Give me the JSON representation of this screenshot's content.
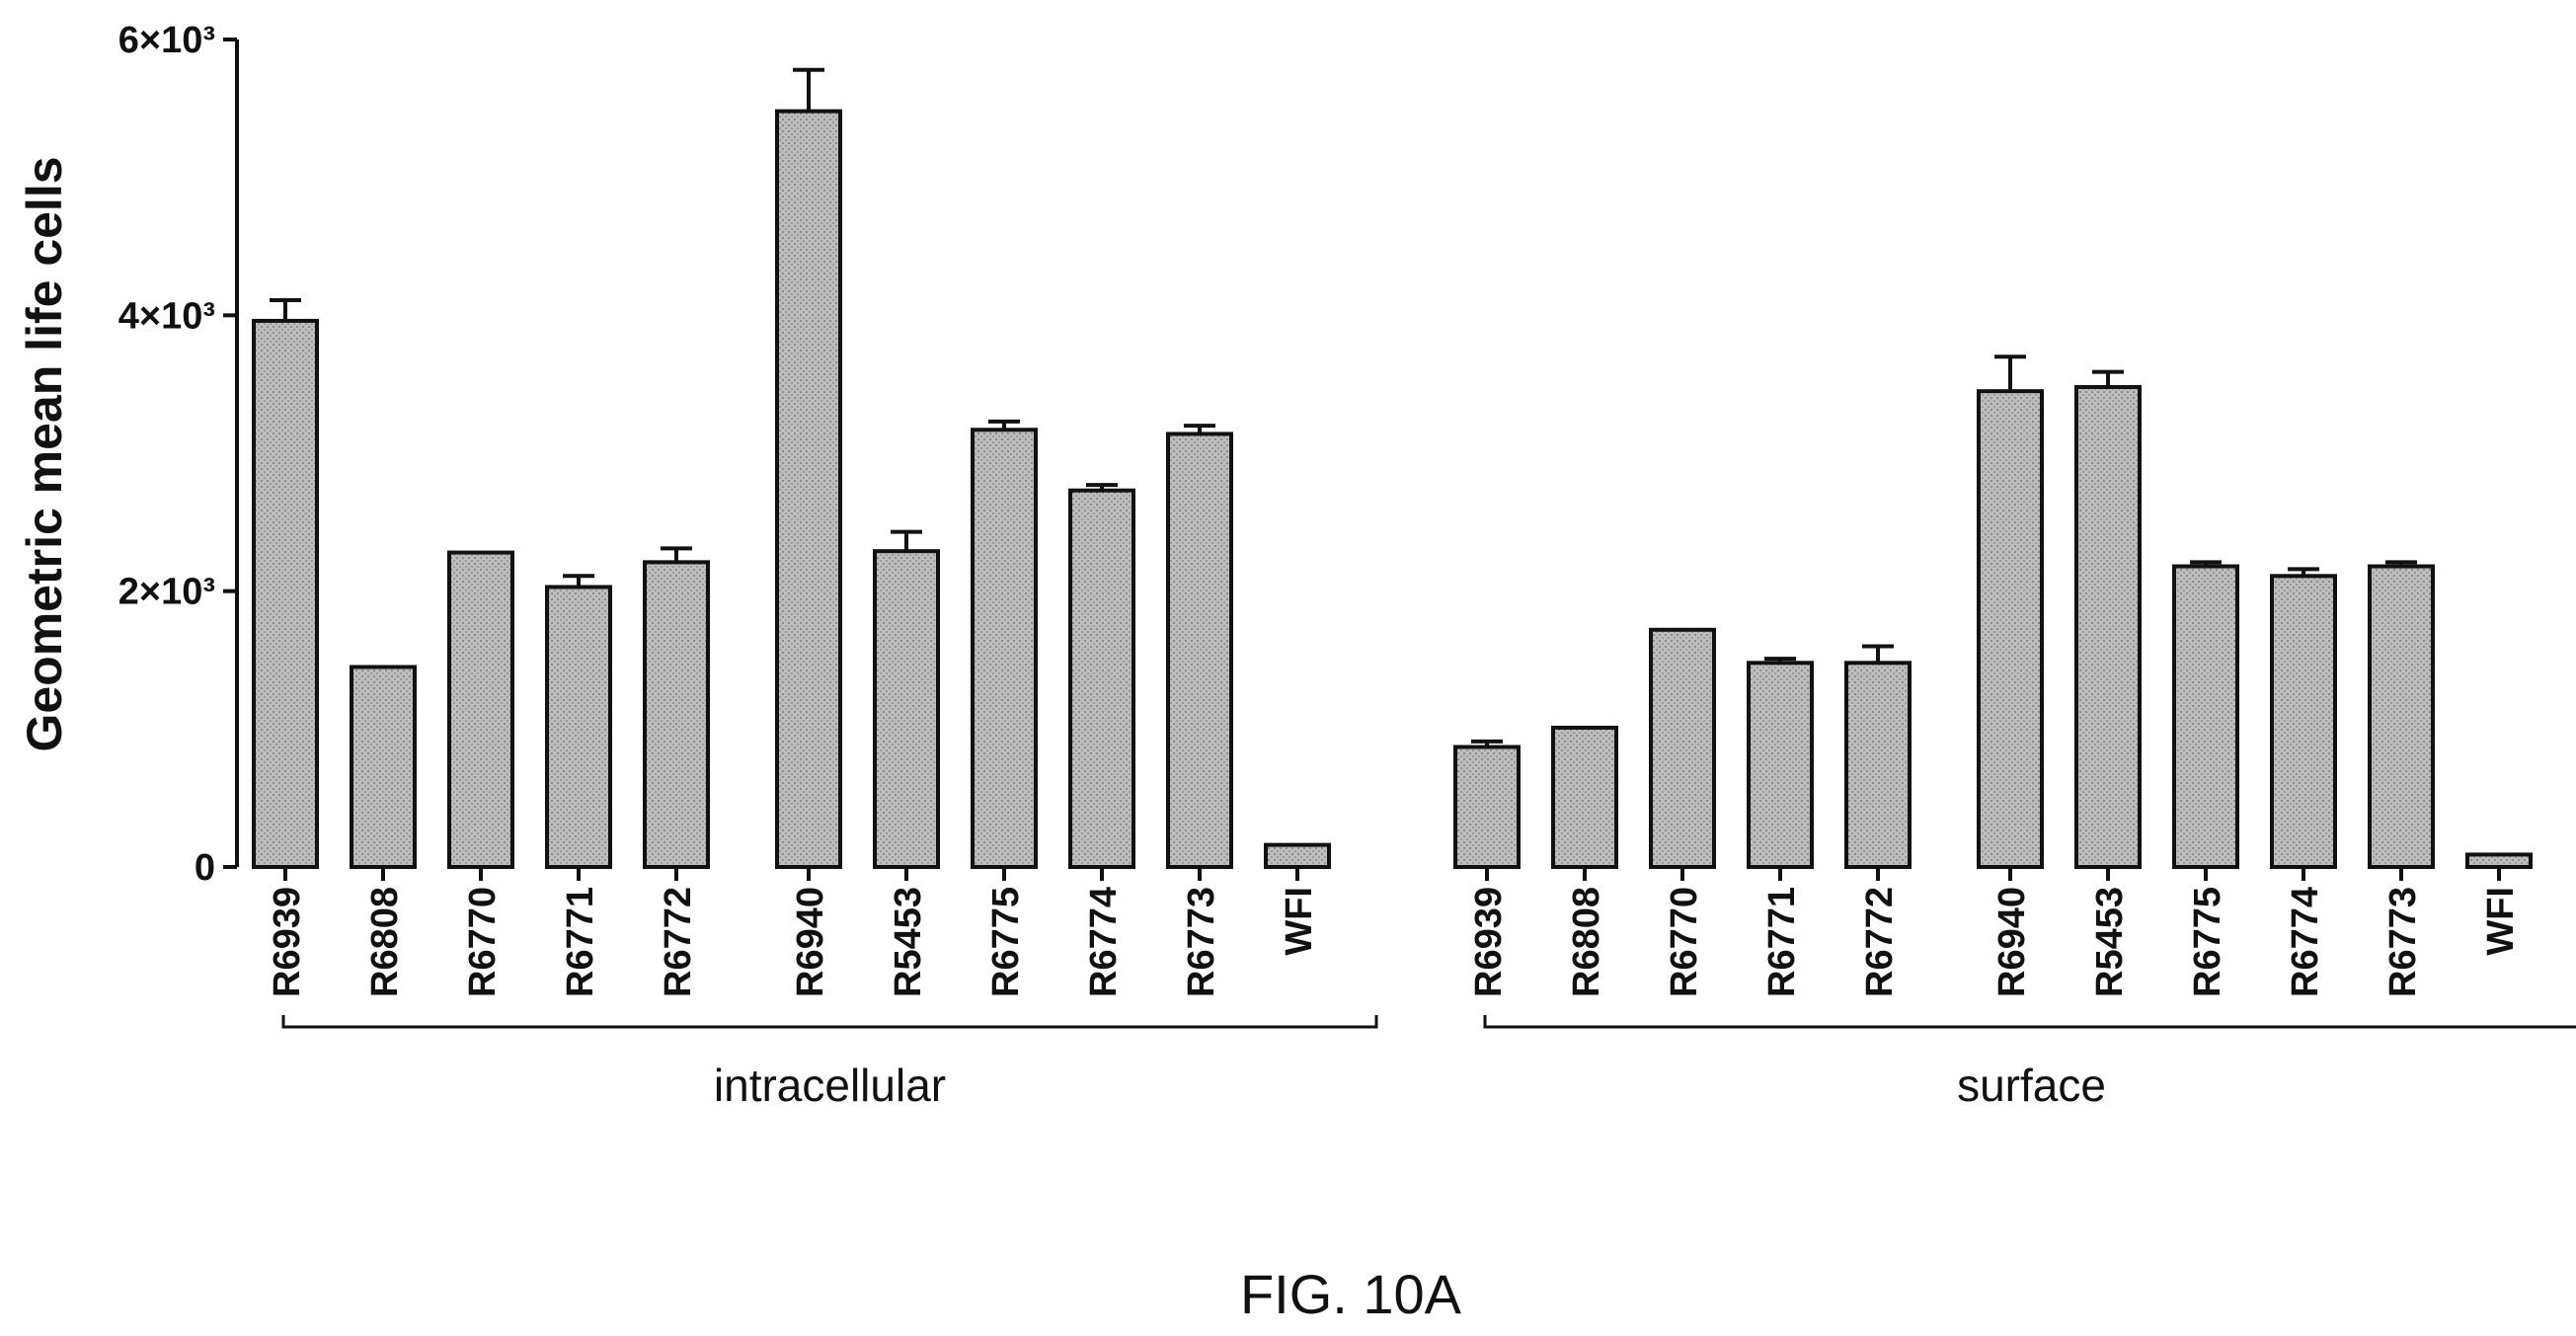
{
  "chart_data": {
    "type": "bar",
    "ylabel": "Geometric mean life cells",
    "ylim": [
      0,
      6000
    ],
    "y_ticks": [
      {
        "value": 0,
        "label": "0"
      },
      {
        "value": 2000,
        "label": "2×10³"
      },
      {
        "value": 4000,
        "label": "4×10³"
      },
      {
        "value": 6000,
        "label": "6×10³"
      }
    ],
    "bar_color": "#b8b8b8",
    "groups": [
      {
        "name": "intracellular",
        "bars": [
          {
            "label": "R6939",
            "value": 3960,
            "error": 150
          },
          {
            "label": "R6808",
            "value": 1450,
            "error": 0
          },
          {
            "label": "R6770",
            "value": 2280,
            "error": 0
          },
          {
            "label": "R6771",
            "value": 2030,
            "error": 80
          },
          {
            "label": "R6772",
            "value": 2210,
            "error": 100
          },
          {
            "label": "R6940",
            "value": 5480,
            "error": 300
          },
          {
            "label": "R5453",
            "value": 2290,
            "error": 140
          },
          {
            "label": "R6775",
            "value": 3170,
            "error": 60
          },
          {
            "label": "R6774",
            "value": 2730,
            "error": 40
          },
          {
            "label": "R6773",
            "value": 3140,
            "error": 60
          },
          {
            "label": "WFI",
            "value": 160,
            "error": 0
          }
        ]
      },
      {
        "name": "surface",
        "bars": [
          {
            "label": "R6939",
            "value": 870,
            "error": 40
          },
          {
            "label": "R6808",
            "value": 1010,
            "error": 0
          },
          {
            "label": "R6770",
            "value": 1720,
            "error": 0
          },
          {
            "label": "R6771",
            "value": 1480,
            "error": 30
          },
          {
            "label": "R6772",
            "value": 1480,
            "error": 120
          },
          {
            "label": "R6940",
            "value": 3450,
            "error": 250
          },
          {
            "label": "R5453",
            "value": 3480,
            "error": 110
          },
          {
            "label": "R6775",
            "value": 2180,
            "error": 30
          },
          {
            "label": "R6774",
            "value": 2110,
            "error": 50
          },
          {
            "label": "R6773",
            "value": 2180,
            "error": 30
          },
          {
            "label": "WFI",
            "value": 90,
            "error": 0
          }
        ]
      }
    ]
  },
  "caption": "FIG. 10A"
}
